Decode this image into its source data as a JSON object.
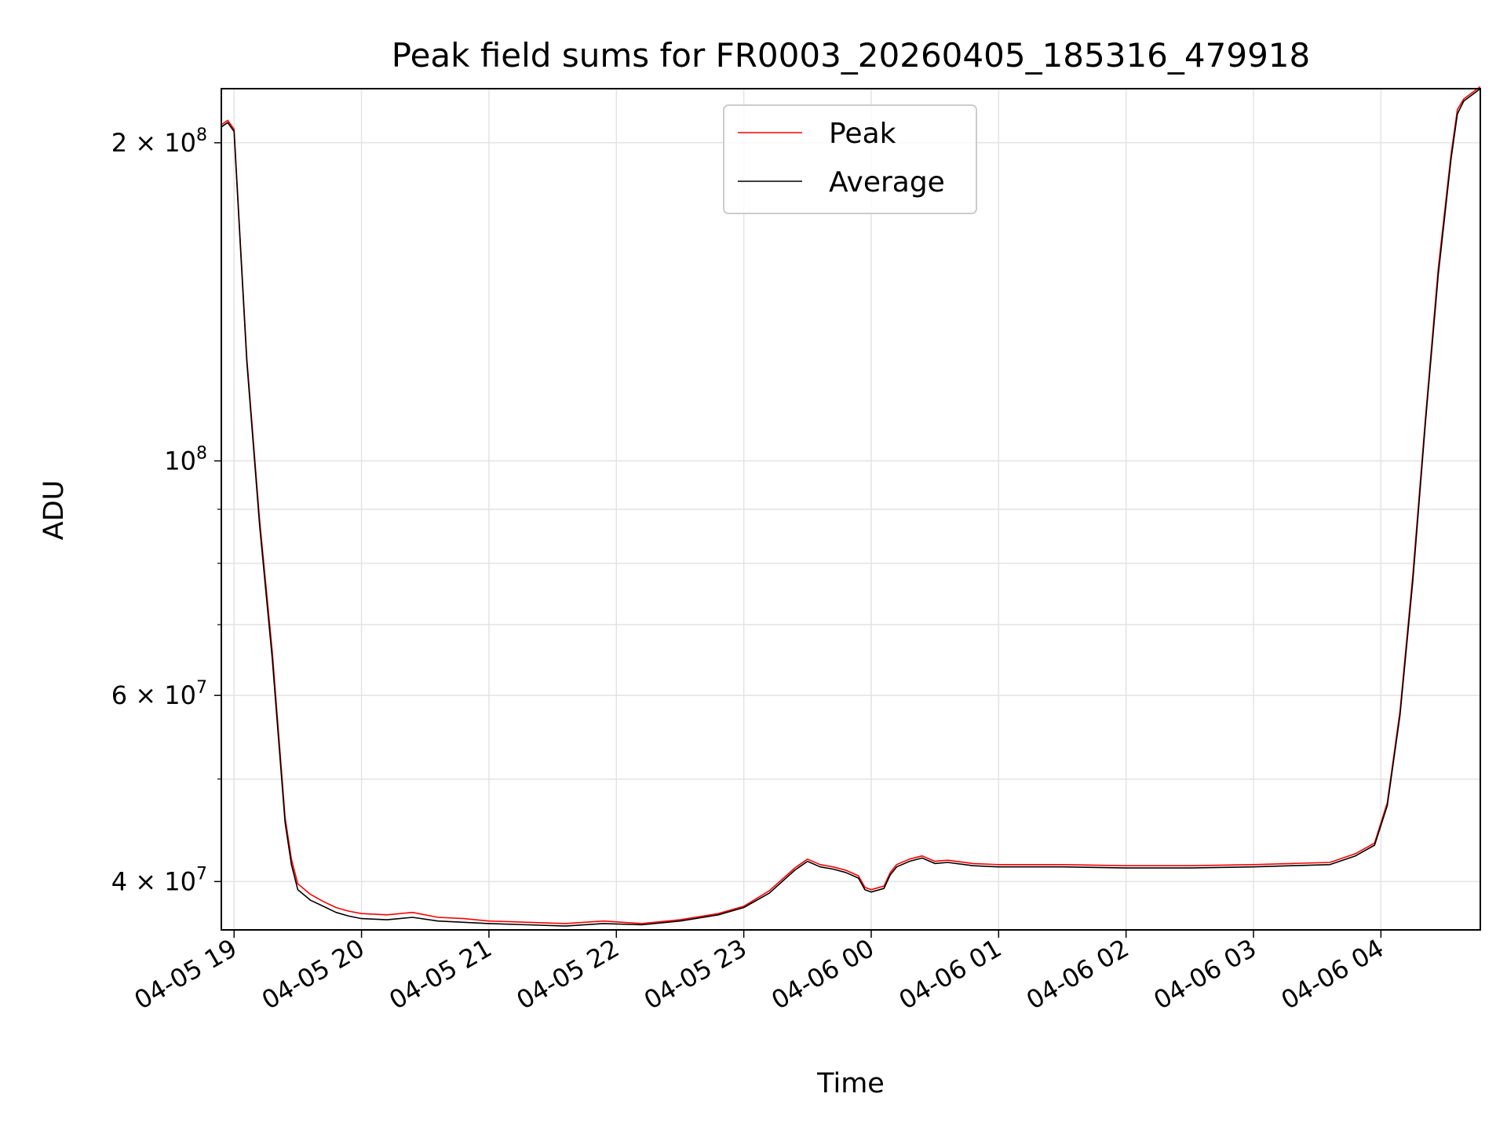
{
  "chart_data": {
    "type": "line",
    "title": "Peak field sums for FR0003_20260405_185316_479918",
    "xlabel": "Time",
    "ylabel": "ADU",
    "yscale": "log",
    "ylim": [
      36000000,
      225000000
    ],
    "xlim_hours": [
      18.9,
      28.78
    ],
    "grid": true,
    "legend_location": "upper center",
    "x_ticks": [
      {
        "hour": 19,
        "label": "04-05 19"
      },
      {
        "hour": 20,
        "label": "04-05 20"
      },
      {
        "hour": 21,
        "label": "04-05 21"
      },
      {
        "hour": 22,
        "label": "04-05 22"
      },
      {
        "hour": 23,
        "label": "04-05 23"
      },
      {
        "hour": 24,
        "label": "04-06 00"
      },
      {
        "hour": 25,
        "label": "04-06 01"
      },
      {
        "hour": 26,
        "label": "04-06 02"
      },
      {
        "hour": 27,
        "label": "04-06 03"
      },
      {
        "hour": 28,
        "label": "04-06 04"
      }
    ],
    "y_ticks": [
      {
        "value": 40000000,
        "base": "4 × 10",
        "exp": "7"
      },
      {
        "value": 60000000,
        "base": "6 × 10",
        "exp": "7"
      },
      {
        "value": 100000000,
        "base": "10",
        "exp": "8"
      },
      {
        "value": 200000000,
        "base": "2 × 10",
        "exp": "8"
      }
    ],
    "y_minor_ticks": [
      50000000,
      70000000,
      80000000,
      90000000
    ],
    "series": [
      {
        "name": "Peak",
        "color": "#ff0000",
        "x_hours": [
          18.9,
          18.95,
          19.0,
          19.05,
          19.1,
          19.2,
          19.3,
          19.4,
          19.45,
          19.5,
          19.6,
          19.7,
          19.8,
          19.9,
          20.0,
          20.2,
          20.4,
          20.6,
          20.8,
          21.0,
          21.3,
          21.6,
          21.9,
          22.2,
          22.5,
          22.8,
          23.0,
          23.2,
          23.4,
          23.5,
          23.6,
          23.7,
          23.8,
          23.9,
          23.95,
          24.0,
          24.1,
          24.15,
          24.2,
          24.3,
          24.4,
          24.5,
          24.6,
          24.8,
          25.0,
          25.5,
          26.0,
          26.5,
          27.0,
          27.3,
          27.6,
          27.8,
          27.95,
          28.05,
          28.15,
          28.25,
          28.35,
          28.45,
          28.55,
          28.6,
          28.65,
          28.78
        ],
        "values": [
          208000000,
          210000000,
          206000000,
          160000000,
          125000000,
          88000000,
          66000000,
          46000000,
          42000000,
          39800000,
          38900000,
          38300000,
          37800000,
          37500000,
          37300000,
          37200000,
          37400000,
          37000000,
          36900000,
          36700000,
          36600000,
          36500000,
          36700000,
          36500000,
          36800000,
          37300000,
          37900000,
          39200000,
          41200000,
          42000000,
          41500000,
          41300000,
          41000000,
          40500000,
          39500000,
          39300000,
          39600000,
          40800000,
          41500000,
          42000000,
          42300000,
          41800000,
          41900000,
          41600000,
          41500000,
          41500000,
          41400000,
          41400000,
          41500000,
          41600000,
          41700000,
          42500000,
          43500000,
          47500000,
          58000000,
          78000000,
          110000000,
          152000000,
          195000000,
          215000000,
          220000000,
          226000000
        ]
      },
      {
        "name": "Average",
        "color": "#000000",
        "x_hours": [
          18.9,
          18.95,
          19.0,
          19.05,
          19.1,
          19.2,
          19.3,
          19.4,
          19.45,
          19.5,
          19.6,
          19.7,
          19.8,
          19.9,
          20.0,
          20.2,
          20.4,
          20.6,
          20.8,
          21.0,
          21.3,
          21.6,
          21.9,
          22.2,
          22.5,
          22.8,
          23.0,
          23.2,
          23.4,
          23.5,
          23.6,
          23.7,
          23.8,
          23.9,
          23.95,
          24.0,
          24.1,
          24.15,
          24.2,
          24.3,
          24.4,
          24.5,
          24.6,
          24.8,
          25.0,
          25.5,
          26.0,
          26.5,
          27.0,
          27.3,
          27.6,
          27.8,
          27.95,
          28.05,
          28.15,
          28.25,
          28.35,
          28.45,
          28.55,
          28.6,
          28.65,
          28.78
        ],
        "values": [
          207000000,
          209000000,
          205000000,
          159000000,
          124000000,
          87000000,
          65000000,
          45500000,
          41500000,
          39300000,
          38400000,
          37900000,
          37400000,
          37100000,
          36900000,
          36800000,
          37000000,
          36700000,
          36600000,
          36500000,
          36400000,
          36300000,
          36500000,
          36400000,
          36700000,
          37200000,
          37800000,
          39000000,
          41000000,
          41800000,
          41300000,
          41100000,
          40800000,
          40300000,
          39300000,
          39100000,
          39400000,
          40600000,
          41300000,
          41800000,
          42100000,
          41600000,
          41700000,
          41400000,
          41300000,
          41300000,
          41200000,
          41200000,
          41300000,
          41400000,
          41500000,
          42300000,
          43300000,
          47200000,
          57500000,
          77000000,
          109000000,
          150000000,
          193000000,
          213000000,
          219000000,
          225000000
        ]
      }
    ]
  }
}
